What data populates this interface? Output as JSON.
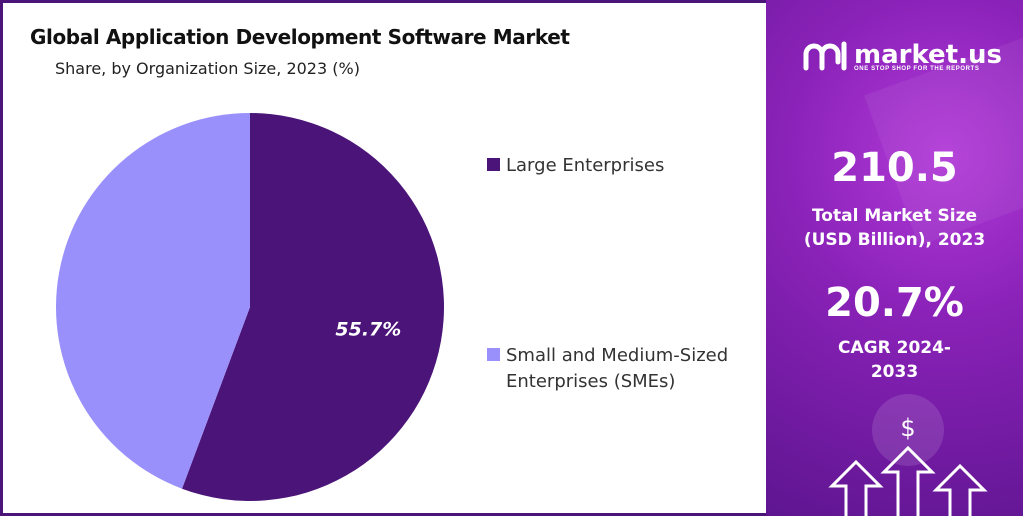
{
  "chart_data": {
    "type": "pie",
    "title": "Global Application Development Software Market",
    "subtitle": "Share, by Organization Size, 2023 (%)",
    "categories": [
      "Large Enterprises",
      "Small and Medium-Sized Enterprises (SMEs)"
    ],
    "values": [
      55.7,
      44.3
    ],
    "data_labels": [
      "55.7%",
      ""
    ],
    "colors": [
      "#4a1478",
      "#9a90fb"
    ],
    "legend_placement": "right"
  },
  "legend": [
    {
      "label": "Large Enterprises",
      "color": "#4a1478"
    },
    {
      "label": "Small and Medium-Sized Enterprises (SMEs)",
      "color": "#9a90fb"
    }
  ],
  "brand": {
    "name": "market.us",
    "tagline": "ONE STOP SHOP FOR THE REPORTS",
    "logo_icon": "market-us-logo-icon"
  },
  "stats": {
    "market_size_value": "210.5",
    "market_size_label": "Total Market Size (USD Billion), 2023",
    "cagr_value": "20.7%",
    "cagr_label": "CAGR 2024-2033"
  },
  "decor": {
    "dollar_symbol": "$",
    "icon": "rising-arrows-icon"
  }
}
